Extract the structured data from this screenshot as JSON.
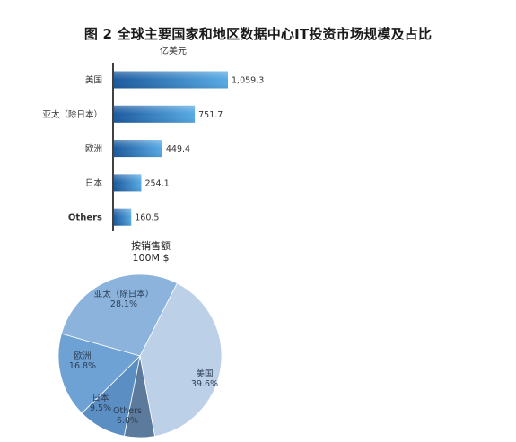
{
  "title": "图 2  全球主要国家和地区数据中心IT投资市场规模及占比",
  "unit_label": "亿美元",
  "xlabel_lines": [
    "按销售额",
    "100M $"
  ],
  "chart_data": [
    {
      "type": "bar",
      "orientation": "horizontal",
      "title": "图 2  全球主要国家和地区数据中心IT投资市场规模及占比",
      "ylabel": "亿美元",
      "xlabel": "按销售额 100M $",
      "categories": [
        "美国",
        "亚太（除日本）",
        "欧洲",
        "日本",
        "Others"
      ],
      "values": [
        1059.3,
        751.7,
        449.4,
        254.1,
        160.5
      ],
      "value_labels": [
        "1,059.3",
        "751.7",
        "449.4",
        "254.1",
        "160.5"
      ],
      "bold_categories": [
        "Others"
      ],
      "colors": {
        "bar_left": "#1c5a9e",
        "bar_right": "#57aae5"
      },
      "grid": false
    },
    {
      "type": "pie",
      "slices": [
        {
          "label": "美国",
          "percent_label": "39.6%",
          "value": 39.6,
          "color": "#bcd0e8"
        },
        {
          "label": "Others",
          "percent_label": "6.0%",
          "value": 6.0,
          "color": "#5b7a9c"
        },
        {
          "label": "日本",
          "percent_label": "9.5%",
          "value": 9.5,
          "color": "#5b8fc3"
        },
        {
          "label": "欧洲",
          "percent_label": "16.8%",
          "value": 16.8,
          "color": "#6ea2d4"
        },
        {
          "label": "亚太（除日本）",
          "percent_label": "28.1%",
          "value": 28.1,
          "color": "#8bb3dc"
        }
      ],
      "start_angle_deg": -63,
      "direction": "clockwise",
      "legend": "none"
    }
  ]
}
